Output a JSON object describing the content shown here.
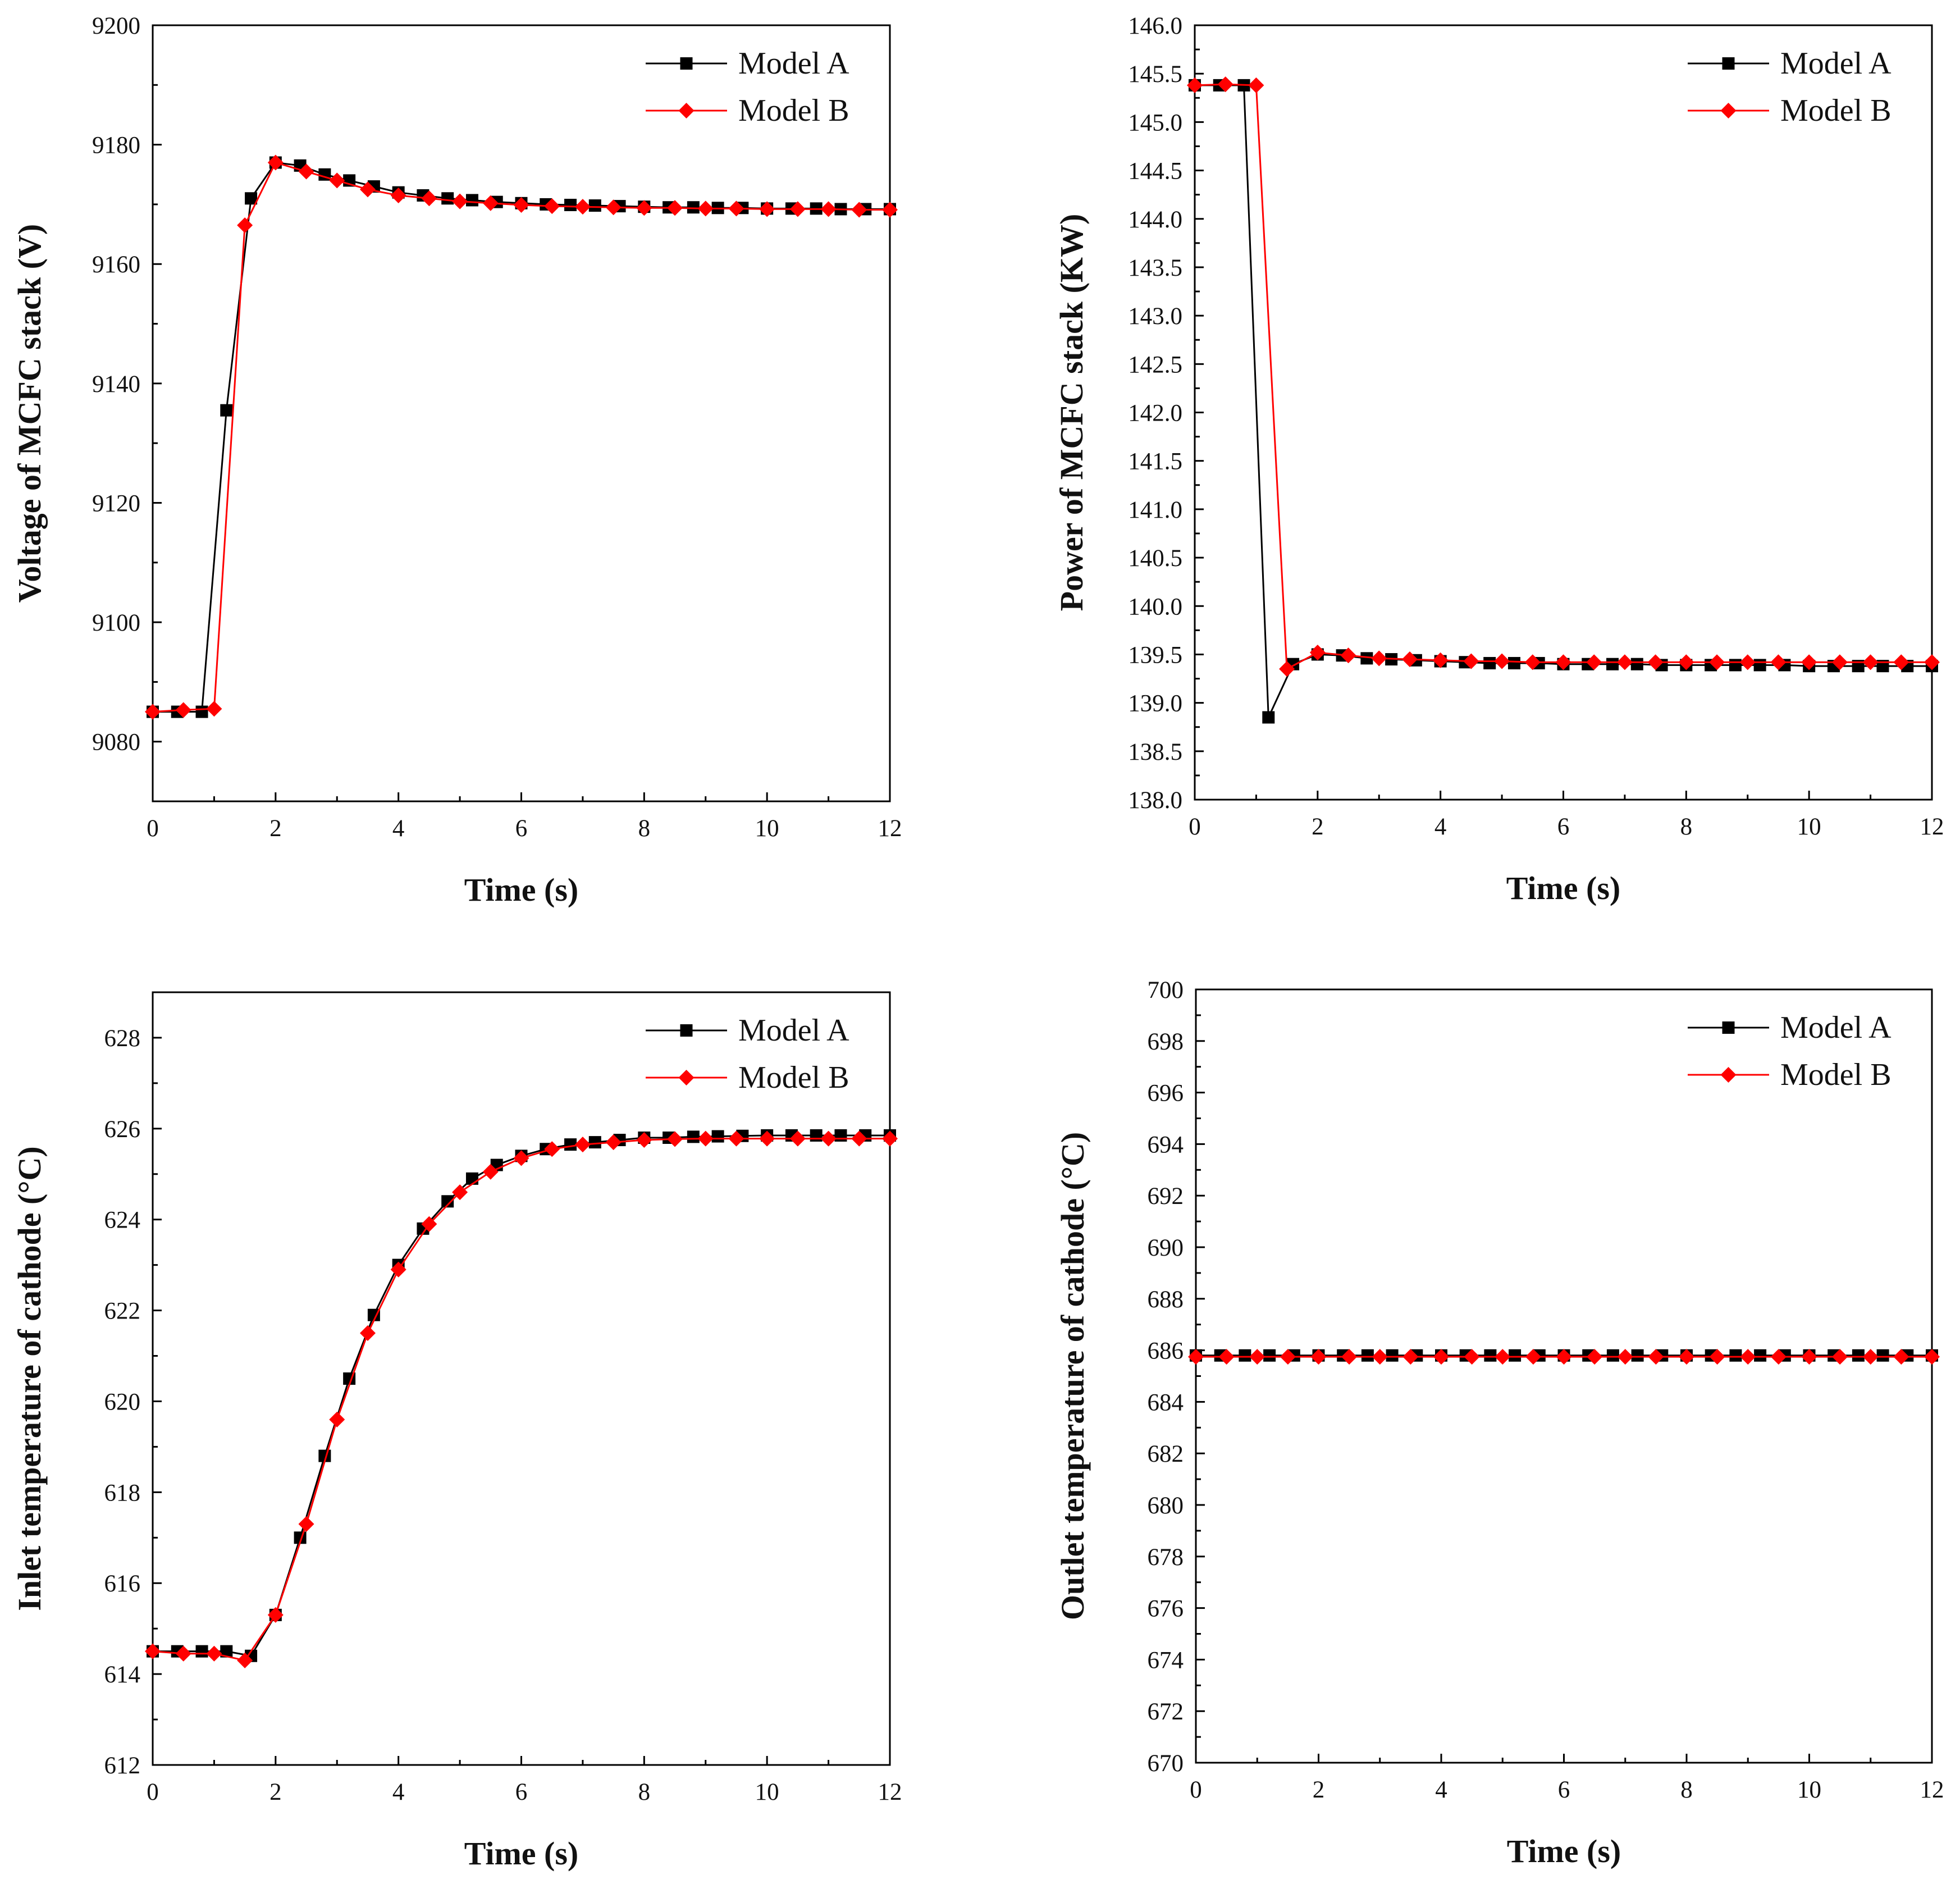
{
  "series_styles": {
    "Model A": {
      "color": "#000000",
      "marker": "square"
    },
    "Model B": {
      "color": "#ff0000",
      "marker": "diamond"
    }
  },
  "chart_data": [
    {
      "id": "voltage",
      "type": "line",
      "xlabel": "Time (s)",
      "ylabel": "Voltage of MCFC stack (V)",
      "xlim": [
        0,
        12
      ],
      "ylim": [
        9070,
        9200
      ],
      "xticks": [
        "0",
        "2",
        "4",
        "6",
        "8",
        "10",
        "12"
      ],
      "yticks": [
        "9080",
        "9100",
        "9120",
        "9140",
        "9160",
        "9180",
        "9200"
      ],
      "legend": [
        "Model A",
        "Model B"
      ],
      "legend_position": "top-right",
      "series": [
        {
          "name": "Model A",
          "x": [
            0,
            0.4,
            0.8,
            1.2,
            1.6,
            2.0,
            2.4,
            2.8,
            3.2,
            3.6,
            4.0,
            4.4,
            4.8,
            5.2,
            5.6,
            6.0,
            6.4,
            6.8,
            7.2,
            7.6,
            8.0,
            8.4,
            8.8,
            9.2,
            9.6,
            10.0,
            10.4,
            10.8,
            11.2,
            11.6,
            12.0
          ],
          "y": [
            9085,
            9085,
            9085,
            9135.5,
            9171,
            9177,
            9176.5,
            9175,
            9174,
            9173,
            9172,
            9171.5,
            9171,
            9170.7,
            9170.4,
            9170.2,
            9170,
            9169.9,
            9169.8,
            9169.7,
            9169.6,
            9169.5,
            9169.5,
            9169.4,
            9169.4,
            9169.3,
            9169.3,
            9169.3,
            9169.2,
            9169.2,
            9169.2
          ]
        },
        {
          "name": "Model B",
          "x": [
            0,
            0.5,
            1.0,
            1.5,
            2.0,
            2.5,
            3.0,
            3.5,
            4.0,
            4.5,
            5.0,
            5.5,
            6.0,
            6.5,
            7.0,
            7.5,
            8.0,
            8.5,
            9.0,
            9.5,
            10.0,
            10.5,
            11.0,
            11.5,
            12.0
          ],
          "y": [
            9085,
            9085.3,
            9085.5,
            9166.5,
            9177,
            9175.5,
            9174,
            9172.5,
            9171.5,
            9171,
            9170.5,
            9170.2,
            9169.9,
            9169.7,
            9169.6,
            9169.5,
            9169.4,
            9169.4,
            9169.3,
            9169.3,
            9169.2,
            9169.2,
            9169.2,
            9169.1,
            9169.1
          ]
        }
      ]
    },
    {
      "id": "power",
      "type": "line",
      "xlabel": "Time (s)",
      "ylabel": "Power of MCFC stack (KW)",
      "xlim": [
        0,
        12
      ],
      "ylim": [
        138.0,
        146.0
      ],
      "xticks": [
        "0",
        "2",
        "4",
        "6",
        "8",
        "10",
        "12"
      ],
      "yticks": [
        "138.0",
        "138.5",
        "139.0",
        "139.5",
        "140.0",
        "140.5",
        "141.0",
        "141.5",
        "142.0",
        "142.5",
        "143.0",
        "143.5",
        "144.0",
        "144.5",
        "145.0",
        "145.5",
        "146.0"
      ],
      "legend": [
        "Model A",
        "Model B"
      ],
      "legend_position": "top-right",
      "series": [
        {
          "name": "Model A",
          "x": [
            0,
            0.4,
            0.8,
            1.2,
            1.6,
            2.0,
            2.4,
            2.8,
            3.2,
            3.6,
            4.0,
            4.4,
            4.8,
            5.2,
            5.6,
            6.0,
            6.4,
            6.8,
            7.2,
            7.6,
            8.0,
            8.4,
            8.8,
            9.2,
            9.6,
            10.0,
            10.4,
            10.8,
            11.2,
            11.6,
            12.0
          ],
          "y": [
            145.38,
            145.38,
            145.38,
            138.85,
            139.4,
            139.5,
            139.49,
            139.46,
            139.45,
            139.44,
            139.43,
            139.42,
            139.41,
            139.41,
            139.41,
            139.4,
            139.4,
            139.4,
            139.4,
            139.39,
            139.39,
            139.39,
            139.39,
            139.39,
            139.39,
            139.38,
            139.38,
            139.38,
            139.38,
            139.38,
            139.38
          ]
        },
        {
          "name": "Model B",
          "x": [
            0,
            0.5,
            1.0,
            1.5,
            2.0,
            2.5,
            3.0,
            3.5,
            4.0,
            4.5,
            5.0,
            5.5,
            6.0,
            6.5,
            7.0,
            7.5,
            8.0,
            8.5,
            9.0,
            9.5,
            10.0,
            10.5,
            11.0,
            11.5,
            12.0
          ],
          "y": [
            145.38,
            145.39,
            145.38,
            139.35,
            139.52,
            139.49,
            139.46,
            139.45,
            139.44,
            139.43,
            139.43,
            139.42,
            139.42,
            139.42,
            139.42,
            139.42,
            139.42,
            139.42,
            139.42,
            139.42,
            139.42,
            139.42,
            139.42,
            139.42,
            139.42
          ]
        }
      ]
    },
    {
      "id": "inlet",
      "type": "line",
      "xlabel": "Time (s)",
      "ylabel": "Inlet temperature of cathode (°C)",
      "xlim": [
        0,
        12
      ],
      "ylim": [
        612,
        629
      ],
      "xticks": [
        "0",
        "2",
        "4",
        "6",
        "8",
        "10",
        "12"
      ],
      "yticks": [
        "612",
        "614",
        "616",
        "618",
        "620",
        "622",
        "624",
        "626",
        "628"
      ],
      "legend": [
        "Model A",
        "Model B"
      ],
      "legend_position": "top-right",
      "series": [
        {
          "name": "Model A",
          "x": [
            0,
            0.4,
            0.8,
            1.2,
            1.6,
            2.0,
            2.4,
            2.8,
            3.2,
            3.6,
            4.0,
            4.4,
            4.8,
            5.2,
            5.6,
            6.0,
            6.4,
            6.8,
            7.2,
            7.6,
            8.0,
            8.4,
            8.8,
            9.2,
            9.6,
            10.0,
            10.4,
            10.8,
            11.2,
            11.6,
            12.0
          ],
          "y": [
            614.5,
            614.5,
            614.5,
            614.5,
            614.4,
            615.3,
            617.0,
            618.8,
            620.5,
            621.9,
            623.0,
            623.8,
            624.4,
            624.9,
            625.2,
            625.4,
            625.55,
            625.65,
            625.7,
            625.75,
            625.8,
            625.8,
            625.82,
            625.83,
            625.84,
            625.85,
            625.85,
            625.85,
            625.85,
            625.85,
            625.85
          ]
        },
        {
          "name": "Model B",
          "x": [
            0,
            0.5,
            1.0,
            1.5,
            2.0,
            2.5,
            3.0,
            3.5,
            4.0,
            4.5,
            5.0,
            5.5,
            6.0,
            6.5,
            7.0,
            7.5,
            8.0,
            8.5,
            9.0,
            9.5,
            10.0,
            10.5,
            11.0,
            11.5,
            12.0
          ],
          "y": [
            614.5,
            614.45,
            614.45,
            614.3,
            615.3,
            617.3,
            619.6,
            621.5,
            622.9,
            623.9,
            624.6,
            625.05,
            625.35,
            625.55,
            625.65,
            625.7,
            625.75,
            625.77,
            625.78,
            625.78,
            625.78,
            625.78,
            625.78,
            625.78,
            625.78
          ]
        }
      ]
    },
    {
      "id": "outlet",
      "type": "line",
      "xlabel": "Time (s)",
      "ylabel": "Outlet temperature of cathode (°C)",
      "xlim": [
        0,
        12
      ],
      "ylim": [
        670,
        700
      ],
      "xticks": [
        "0",
        "2",
        "4",
        "6",
        "8",
        "10",
        "12"
      ],
      "yticks": [
        "670",
        "672",
        "674",
        "676",
        "678",
        "680",
        "682",
        "684",
        "686",
        "688",
        "690",
        "692",
        "694",
        "696",
        "698",
        "700"
      ],
      "legend": [
        "Model A",
        "Model B"
      ],
      "legend_position": "top-right",
      "series": [
        {
          "name": "Model A",
          "x": [
            0,
            0.4,
            0.8,
            1.2,
            1.6,
            2.0,
            2.4,
            2.8,
            3.2,
            3.6,
            4.0,
            4.4,
            4.8,
            5.2,
            5.6,
            6.0,
            6.4,
            6.8,
            7.2,
            7.6,
            8.0,
            8.4,
            8.8,
            9.2,
            9.6,
            10.0,
            10.4,
            10.8,
            11.2,
            11.6,
            12.0
          ],
          "y": [
            685.8,
            685.8,
            685.8,
            685.8,
            685.8,
            685.8,
            685.8,
            685.8,
            685.8,
            685.8,
            685.8,
            685.8,
            685.8,
            685.8,
            685.8,
            685.8,
            685.8,
            685.8,
            685.8,
            685.8,
            685.8,
            685.8,
            685.8,
            685.8,
            685.8,
            685.8,
            685.8,
            685.8,
            685.8,
            685.8,
            685.8
          ]
        },
        {
          "name": "Model B",
          "x": [
            0,
            0.5,
            1.0,
            1.5,
            2.0,
            2.5,
            3.0,
            3.5,
            4.0,
            4.5,
            5.0,
            5.5,
            6.0,
            6.5,
            7.0,
            7.5,
            8.0,
            8.5,
            9.0,
            9.5,
            10.0,
            10.5,
            11.0,
            11.5,
            12.0
          ],
          "y": [
            685.75,
            685.75,
            685.75,
            685.75,
            685.75,
            685.75,
            685.75,
            685.75,
            685.75,
            685.75,
            685.75,
            685.75,
            685.75,
            685.75,
            685.75,
            685.75,
            685.75,
            685.75,
            685.75,
            685.75,
            685.75,
            685.75,
            685.75,
            685.75,
            685.75
          ]
        }
      ]
    }
  ]
}
